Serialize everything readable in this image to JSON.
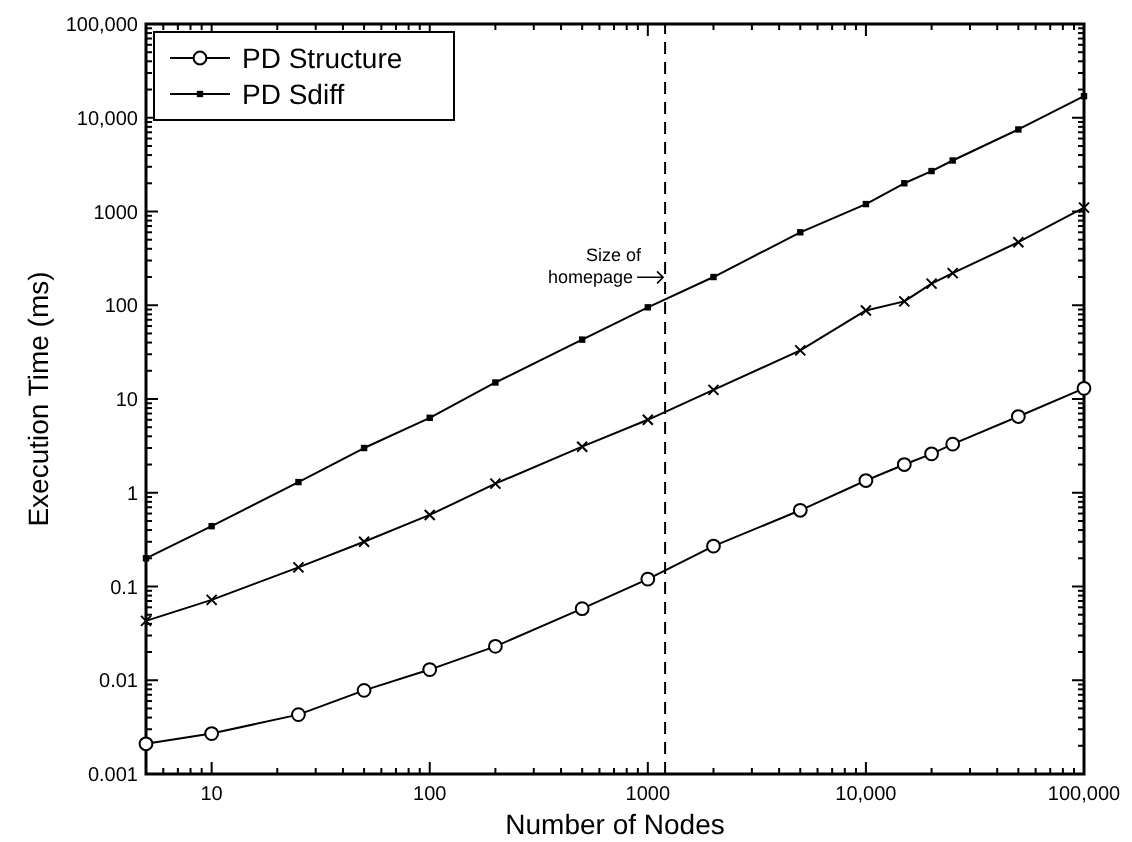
{
  "chart_data": {
    "type": "line",
    "xlabel": "Number of Nodes",
    "ylabel": "Execution Time (ms)",
    "log": "xy",
    "legend": "top left",
    "grid": false,
    "x": [
      5,
      10,
      25,
      50,
      100,
      200,
      500,
      1000,
      2000,
      5000,
      10000,
      15000,
      20000,
      25000,
      50000,
      100000
    ],
    "xlim": [
      5,
      100000
    ],
    "xticks": [
      10,
      100,
      1000,
      {
        "value": 10000,
        "label": "10,000"
      },
      {
        "value": 100000,
        "label": "100,000"
      }
    ],
    "ylim": [
      0.001,
      100000
    ],
    "yticks": [
      0.001,
      0.01,
      0.1,
      1,
      10,
      100,
      1000,
      {
        "value": 10000,
        "label": "10,000"
      },
      {
        "value": 100000,
        "label": "100,000"
      }
    ],
    "series": [
      {
        "color": "#000000",
        "marker": "cross",
        "values": [
          0.043,
          0.072,
          0.16,
          0.3,
          0.58,
          1.25,
          3.1,
          6,
          12.5,
          33,
          88,
          110,
          170,
          220,
          470,
          1100
        ]
      },
      {
        "name": "PD Structure",
        "color": "#000000",
        "marker": "circle",
        "values": [
          0.0021,
          0.0027,
          0.0043,
          0.0078,
          0.013,
          0.023,
          0.058,
          0.12,
          0.27,
          0.65,
          1.35,
          2,
          2.6,
          3.3,
          6.5,
          13
        ]
      },
      {
        "name": "PD Sdiff",
        "color": "#000000",
        "marker": "square",
        "values": [
          0.2,
          0.44,
          1.3,
          3,
          6.3,
          15,
          43,
          95,
          200,
          600,
          1200,
          2000,
          2700,
          3500,
          7500,
          17000
        ]
      }
    ],
    "ref_lines": [
      {
        "axis": "x",
        "value": 1200,
        "line_style": "dashed"
      }
    ],
    "annotations": [
      {
        "text": "Size of homepage",
        "x": 1200,
        "y": 180
      }
    ]
  }
}
